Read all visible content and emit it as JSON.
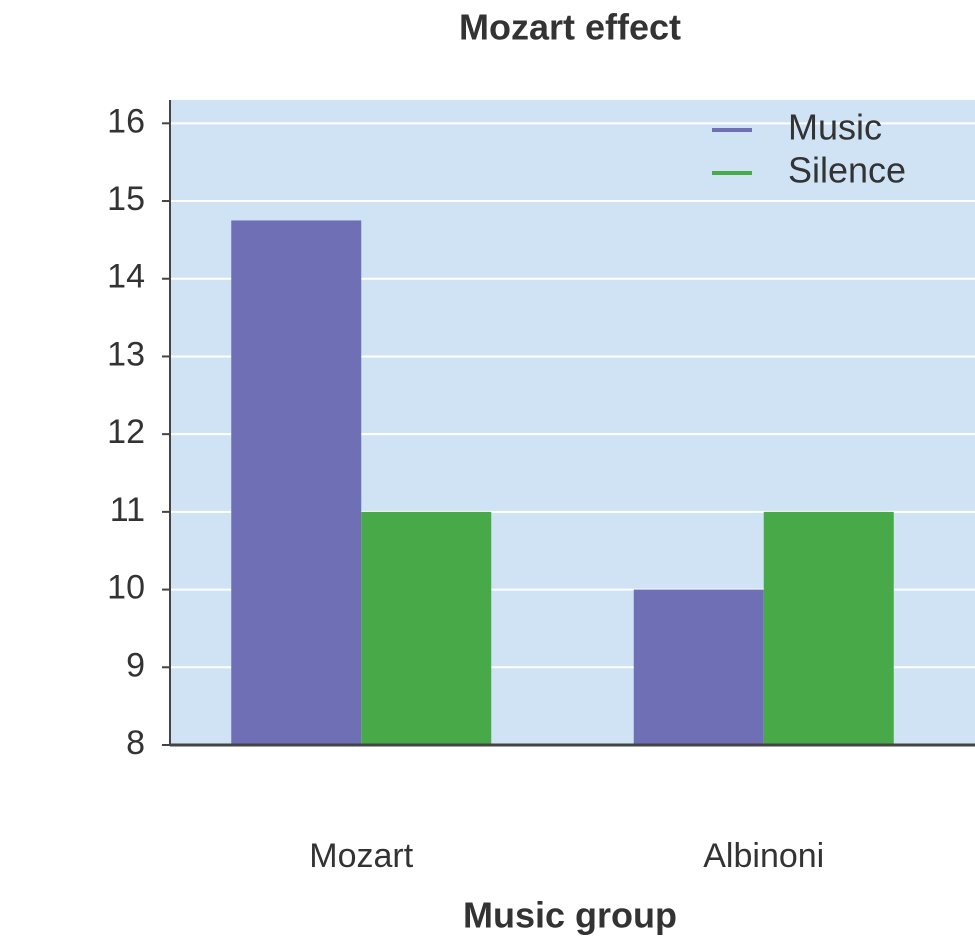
{
  "chart_data": {
    "type": "bar",
    "title": "Mozart effect",
    "x_label": "Music group",
    "categories": [
      "Mozart",
      "Albinoni"
    ],
    "series": [
      {
        "name": "Music",
        "color": "#6f6fb5",
        "values": [
          14.75,
          10
        ]
      },
      {
        "name": "Silence",
        "color": "#48a948",
        "values": [
          11,
          11
        ]
      }
    ],
    "ylim": [
      8,
      16.3
    ],
    "yticks": [
      8,
      9,
      10,
      11,
      12,
      13,
      14,
      15,
      16
    ],
    "grid": true,
    "legend": "upper right"
  }
}
